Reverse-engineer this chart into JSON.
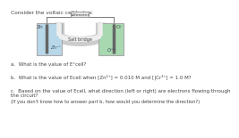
{
  "bg_color": "#ffffff",
  "header_text": "Consider the voltaic cell below:",
  "header_fontsize": 4.2,
  "voltmeter_label": "Voltmeter",
  "salt_bridge_label": "Salt bridge",
  "zn_label": "Zn",
  "cr_label": "Cr",
  "zn2_label": "Zn²⁺",
  "cr3_label": "Cr³⁺",
  "left_beaker_color": "#b8d8ea",
  "right_beaker_color": "#a8d8b0",
  "wire_color": "#777777",
  "beaker_edge_color": "#aaaaaa",
  "electrode_color": "#666666",
  "salt_bridge_outer_color": "#cccccc",
  "salt_bridge_inner_color": "#eeeeee",
  "voltmeter_box_color": "#e8e8e8",
  "voltmeter_border_color": "#999999",
  "q_a": "a.  What is the value of E°cell?",
  "q_b": "b.  What is the value of Ecell when [Zn²⁺] = 0.010 M and [|Cr³⁺] = 1.0 M?",
  "q_c1": "c.  Based on the value of Ecell, what direction (left or right) are electrons flowing through",
  "q_c2": "the circuit?",
  "q_hint": "(If you don't know how to answer part b, how would you determine the direction?)",
  "q_fontsize": 4.0,
  "text_color": "#444444",
  "ion_color_left": "#445566",
  "ion_color_right": "#334455"
}
